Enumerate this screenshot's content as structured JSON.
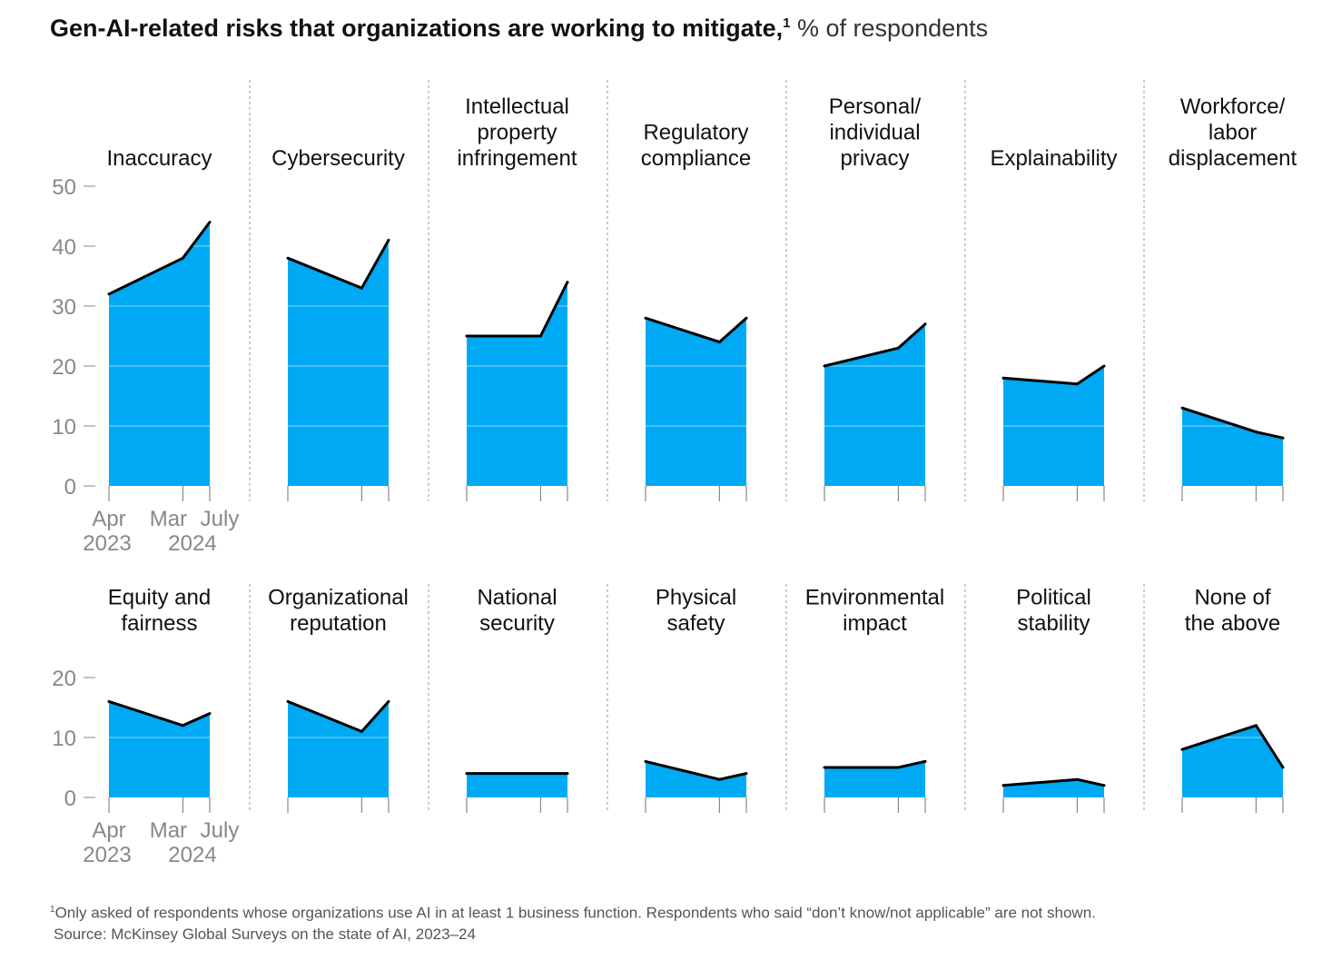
{
  "title": {
    "bold": "Gen-AI-related risks that organizations are working to mitigate,",
    "footnote_mark": "1",
    "subtitle": "% of respondents"
  },
  "footnote": {
    "mark": "1",
    "text": "Only asked of respondents whose organizations use AI in at least 1 business function. Respondents who said “don’t know/not applicable” are not shown.",
    "source": "Source: McKinsey Global Surveys on the state of AI, 2023–24"
  },
  "colors": {
    "fill": "#00A9F4",
    "line": "#000000",
    "axis": "#888888",
    "divider": "#aaaaaa"
  },
  "chart_data": {
    "type": "area",
    "x_labels": [
      {
        "top": "Apr",
        "bottom": "2023"
      },
      {
        "top": "Mar",
        "bottom": ""
      },
      {
        "top": "July",
        "bottom": "2024"
      }
    ],
    "x_dates": [
      "2023-04",
      "2024-03",
      "2024-07"
    ],
    "rows": [
      {
        "y_ticks": [
          0,
          10,
          20,
          30,
          40,
          50
        ],
        "ylim": [
          0,
          50
        ],
        "panels": [
          {
            "label": [
              "Inaccuracy"
            ],
            "values": [
              32,
              38,
              44
            ]
          },
          {
            "label": [
              "Cybersecurity"
            ],
            "values": [
              38,
              33,
              41
            ]
          },
          {
            "label": [
              "Intellectual",
              "property",
              "infringement"
            ],
            "values": [
              25,
              25,
              34
            ]
          },
          {
            "label": [
              "Regulatory",
              "compliance"
            ],
            "values": [
              28,
              24,
              28
            ]
          },
          {
            "label": [
              "Personal/",
              "individual",
              "privacy"
            ],
            "values": [
              20,
              23,
              27
            ]
          },
          {
            "label": [
              "Explainability"
            ],
            "values": [
              18,
              17,
              20
            ]
          },
          {
            "label": [
              "Workforce/",
              "labor",
              "displacement"
            ],
            "values": [
              13,
              9,
              8
            ]
          }
        ]
      },
      {
        "y_ticks": [
          0,
          10,
          20
        ],
        "ylim": [
          0,
          20
        ],
        "panels": [
          {
            "label": [
              "Equity and",
              "fairness"
            ],
            "values": [
              16,
              12,
              14
            ]
          },
          {
            "label": [
              "Organizational",
              "reputation"
            ],
            "values": [
              16,
              11,
              16
            ]
          },
          {
            "label": [
              "National",
              "security"
            ],
            "values": [
              4,
              4,
              4
            ]
          },
          {
            "label": [
              "Physical",
              "safety"
            ],
            "values": [
              6,
              3,
              4
            ]
          },
          {
            "label": [
              "Environmental",
              "impact"
            ],
            "values": [
              5,
              5,
              6
            ]
          },
          {
            "label": [
              "Political",
              "stability"
            ],
            "values": [
              2,
              3,
              2
            ]
          },
          {
            "label": [
              "None of",
              "the above"
            ],
            "values": [
              8,
              12,
              5
            ]
          }
        ]
      }
    ]
  }
}
